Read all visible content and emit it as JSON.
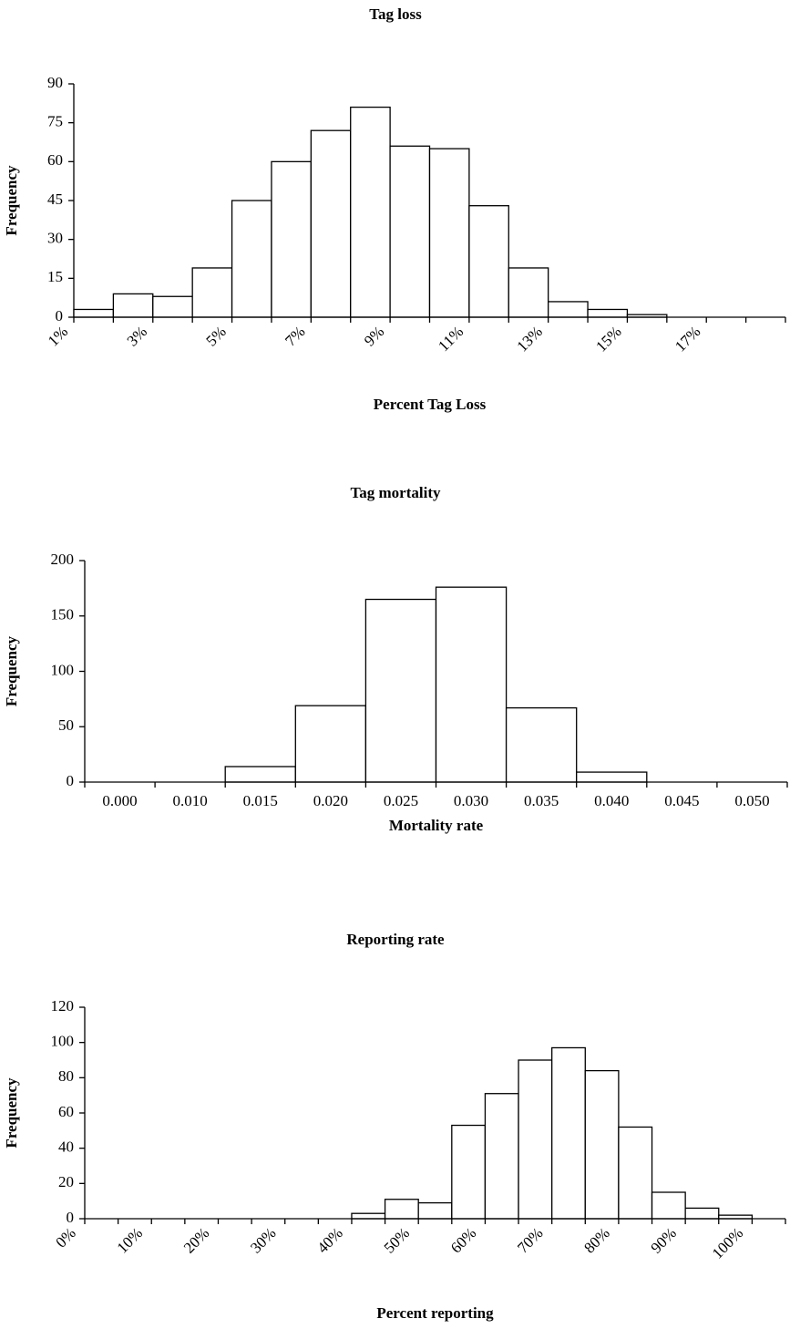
{
  "chart_data": [
    {
      "type": "bar",
      "title": "Tag loss",
      "x_label": "Percent Tag Loss",
      "y_label": "Frequency",
      "categories": [
        "1%",
        null,
        "3%",
        null,
        "5%",
        null,
        "7%",
        null,
        "9%",
        null,
        "11%",
        null,
        "13%",
        null,
        "15%",
        null,
        "17%",
        null
      ],
      "values": [
        3,
        9,
        8,
        19,
        45,
        60,
        72,
        81,
        66,
        65,
        43,
        19,
        6,
        3,
        1,
        0,
        0,
        0
      ],
      "color": "#ffffff",
      "ylim": [
        0,
        90
      ],
      "yticks": [
        0,
        15,
        30,
        45,
        60,
        75,
        90
      ]
    },
    {
      "type": "bar",
      "title": "Tag mortality",
      "x_label": "Mortality rate",
      "y_label": "Frequency",
      "categories": [
        "0.000",
        "0.010",
        "0.015",
        "0.020",
        "0.025",
        "0.030",
        "0.035",
        "0.040",
        "0.045",
        "0.050"
      ],
      "values": [
        0,
        0,
        14,
        69,
        165,
        176,
        67,
        9,
        0,
        0
      ],
      "color": "#ffffff",
      "ylim": [
        0,
        200
      ],
      "yticks": [
        0,
        50,
        100,
        150,
        200
      ]
    },
    {
      "type": "bar",
      "title": "Reporting rate",
      "x_label": "Percent reporting",
      "y_label": "Frequency",
      "categories": [
        "0%",
        null,
        "10%",
        null,
        "20%",
        null,
        "30%",
        null,
        "40%",
        null,
        "50%",
        null,
        "60%",
        null,
        "70%",
        null,
        "80%",
        null,
        "90%",
        null,
        "100%"
      ],
      "values": [
        0,
        0,
        0,
        0,
        0,
        0,
        0,
        0,
        3,
        11,
        9,
        53,
        71,
        90,
        97,
        84,
        52,
        15,
        6,
        2,
        0
      ],
      "color": "#ffffff",
      "ylim": [
        0,
        120
      ],
      "yticks": [
        0,
        20,
        40,
        60,
        80,
        100,
        120
      ]
    }
  ]
}
